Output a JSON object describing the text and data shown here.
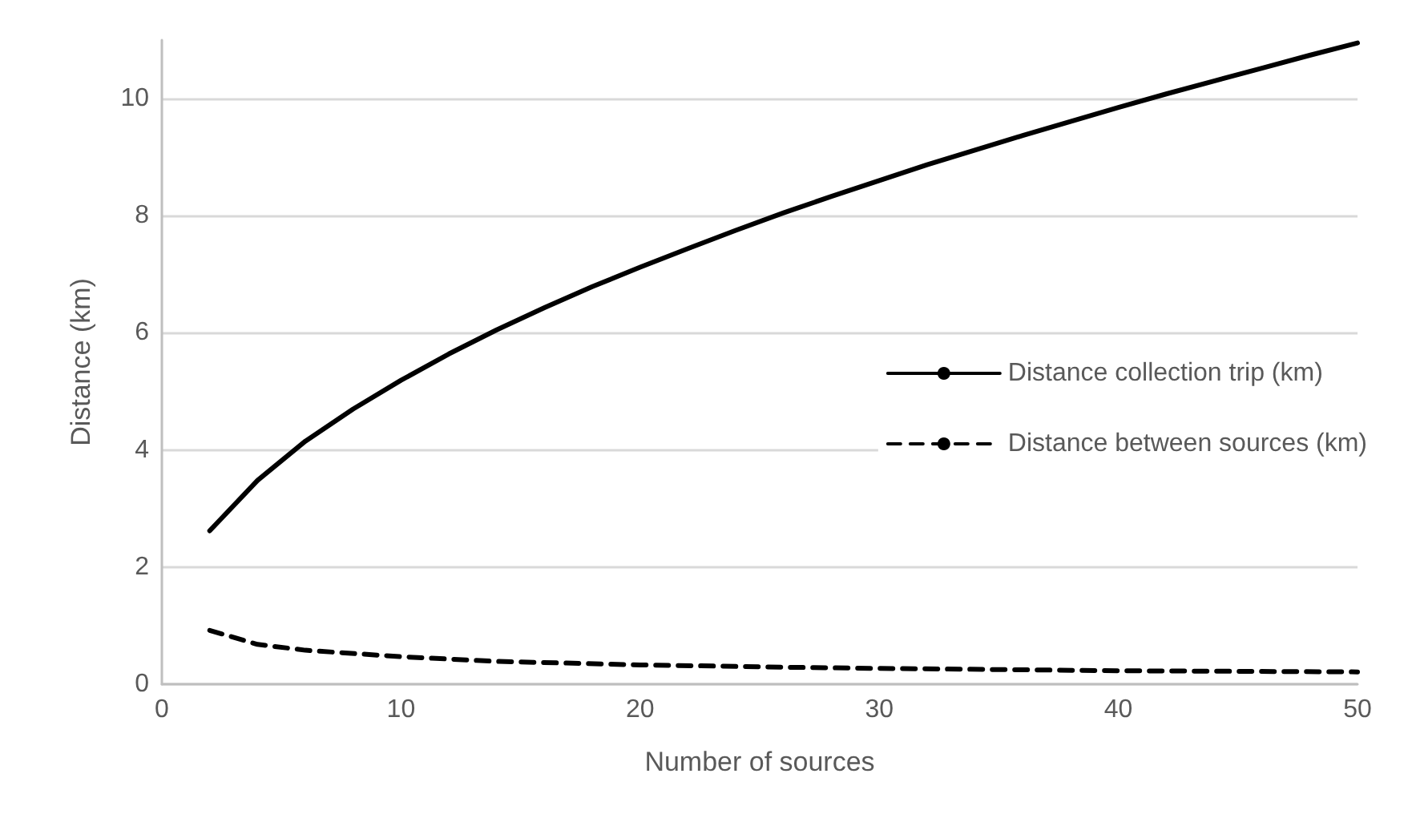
{
  "chart_data": {
    "type": "line",
    "xlabel": "Number of sources",
    "ylabel": "Distance (km)",
    "xlim": [
      0,
      50
    ],
    "xticks": [
      0,
      10,
      20,
      30,
      40,
      50
    ],
    "ylim": [
      0,
      11
    ],
    "yticks": [
      0,
      2,
      4,
      6,
      8,
      10
    ],
    "grid": "y",
    "legend": "right",
    "marker": "none",
    "series": [
      {
        "name": "Distance collection trip (km)",
        "color": "#000000",
        "line_style": "solid",
        "x": [
          2,
          4,
          6,
          8,
          10,
          12,
          14,
          16,
          18,
          20,
          22,
          24,
          26,
          28,
          30,
          32,
          34,
          36,
          38,
          40,
          42,
          44,
          46,
          48,
          50
        ],
        "values": [
          2.62,
          3.48,
          4.15,
          4.7,
          5.19,
          5.64,
          6.05,
          6.43,
          6.79,
          7.12,
          7.44,
          7.75,
          8.05,
          8.33,
          8.6,
          8.87,
          9.12,
          9.37,
          9.61,
          9.85,
          10.08,
          10.3,
          10.52,
          10.74,
          10.95
        ]
      },
      {
        "name": "Distance between sources (km)",
        "color": "#000000",
        "line_style": "dashed",
        "x": [
          2,
          4,
          6,
          10,
          14,
          20,
          26,
          30,
          40,
          50
        ],
        "values": [
          0.92,
          0.68,
          0.58,
          0.47,
          0.39,
          0.33,
          0.29,
          0.27,
          0.23,
          0.21
        ]
      }
    ]
  }
}
